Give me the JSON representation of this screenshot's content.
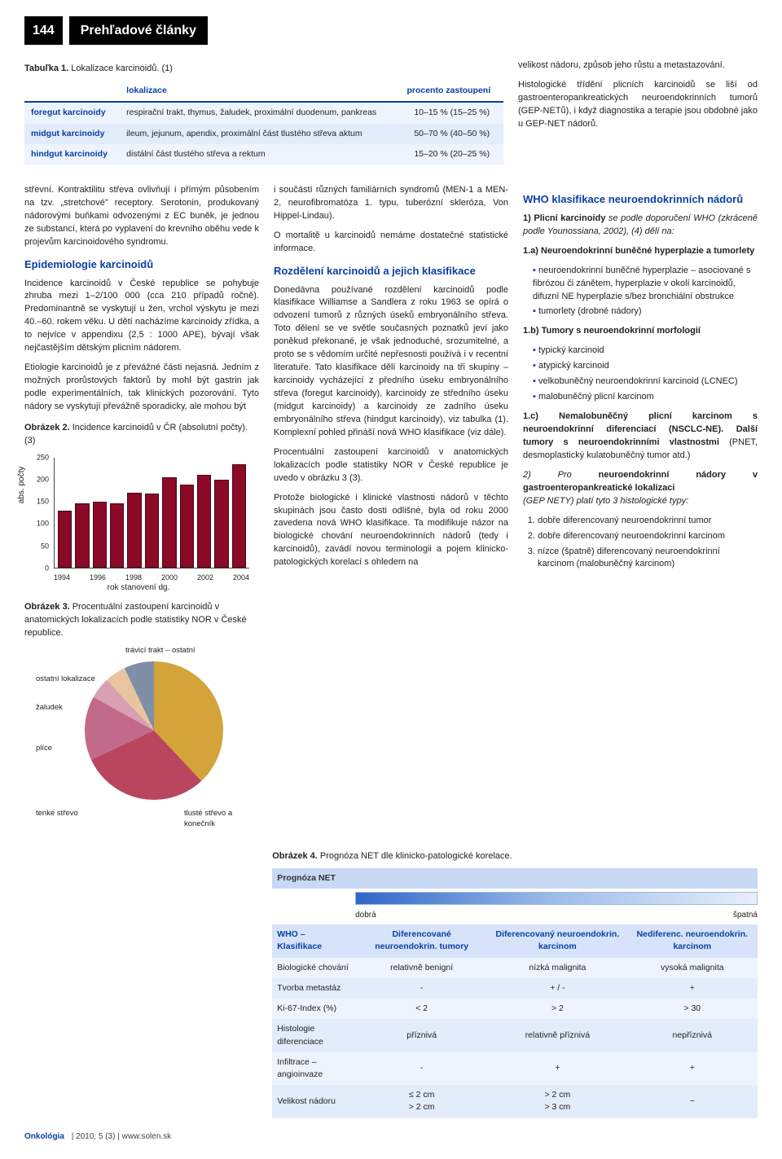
{
  "header": {
    "page_num": "144",
    "section": "Prehľadové články"
  },
  "table1": {
    "caption_bold": "Tabuľka 1.",
    "caption_rest": " Lokalizace karcinoidů. (1)",
    "cols": [
      "",
      "lokalizace",
      "procento zastoupení"
    ],
    "rows": [
      [
        "foregut karcinoidy",
        "respirační trakt, thymus, žaludek, proximální duodenum, pankreas",
        "10–15 % (15–25 %)"
      ],
      [
        "midgut karcinoidy",
        "ileum, jejunum, apendix, proximální část tlustého střeva aktum",
        "50–70 % (40–50 %)"
      ],
      [
        "hindgut karcinoidy",
        "distální část tlustého střeva a rektum",
        "15–20 % (20–25 %)"
      ]
    ]
  },
  "col1": {
    "p1": "střevní. Kontraktilitu střeva ovlivňují i přímým působením na tzv. „stretchové\" receptory. Serotonin, produkovaný nádorovými buňkami odvozenými z EC buněk, je jednou ze substancí, která po vyplavení do krevního oběhu vede k projevům karcinoidového syndromu.",
    "h_epi": "Epidemiologie karcinoidů",
    "p2": "Incidence karcinoidů v České republice se pohybuje zhruba mezi 1–2/100 000 (cca 210 případů ročně). Predominantně se vyskytují u žen, vrchol výskytu je mezi 40.–60. rokem věku. U dětí nacházíme karcinoidy zřídka, a to nejvíce v appendixu (2,5 : 1000 APE), bývají však nejčastějším dětským plicním nádorem.",
    "p3": "Etiologie karcinoidů je z převážné části nejasná. Jedním z možných prorůstových faktorů by mohl být gastrin jak podle experimentálních, tak klinických pozorování. Tyto nádory se vyskytují převážně sporadicky, ale mohou být",
    "fig2_cap_b": "Obrázek 2.",
    "fig2_cap_r": " Incidence karcinoidů v ČR (absolutní počty). (3)",
    "fig3_cap_b": "Obrázek 3.",
    "fig3_cap_r": " Procentuální zastoupení karcinoidů v anatomických lokalizacích podle statistiky NOR v České republice."
  },
  "barchart": {
    "type": "bar",
    "ylabel": "abs. počty",
    "xlabel": "rok stanovení dg.",
    "ylim": [
      0,
      250
    ],
    "ytick_step": 50,
    "yticks": [
      0,
      50,
      100,
      150,
      200,
      250
    ],
    "years": [
      "1994",
      "1995",
      "1996",
      "1997",
      "1998",
      "1999",
      "2000",
      "2001",
      "2002",
      "2003",
      "2004"
    ],
    "xticks_shown": [
      "1994",
      "",
      "1996",
      "",
      "1998",
      "",
      "2000",
      "",
      "2002",
      "",
      "2004"
    ],
    "values": [
      130,
      145,
      150,
      145,
      170,
      168,
      205,
      188,
      210,
      200,
      235
    ],
    "bar_color": "#8a0a28",
    "bar_border": "#4a0516",
    "grid_color": "#444444",
    "background_color": "#ffffff"
  },
  "pie": {
    "labels": [
      "tenké střevo",
      "tlusté střevo a konečník",
      "plíce",
      "žaludek",
      "ostatní lokalizace",
      "trávicí trakt – ostatní"
    ],
    "values": [
      38,
      30,
      15,
      5,
      5,
      7
    ],
    "colors": [
      "#d4a33a",
      "#b9455f",
      "#c26a8a",
      "#d99fb2",
      "#e8c5a0",
      "#7f8fa6"
    ]
  },
  "col2": {
    "p1": "i součástí různých familiárních syndromů (MEN-1 a MEN-2, neurofibromatóza 1. typu, tuberózní skleróza, Von Hippel-Lindau).",
    "p2": "O mortalitě u karcinoidů nemáme dostatečné statistické informace.",
    "h_rozd": "Rozdělení karcinoidů a jejich klasifikace",
    "p3": "Donedávna používané rozdělení karcinoidů podle klasifikace Williamse a Sandlera z roku 1963 se opírá o odvození tumorů z různých úseků embryonálního střeva. Toto dělení se ve světle současných poznatků jeví jako poněkud překonané, je však jednoduché, srozumitelné, a proto se s vědomím určité nepřesnosti používá i v recentní literatuře. Tato klasifikace dělí karcinoidy na tři skupiny – karcinoidy vycházející z předního úseku embryonálního střeva (foregut karcinoidy), karcinoidy ze středního úseku (midgut karcinoidy) a karcinoidy ze zadního úseku embryonálního střeva (hindgut karcinoidy), viz tabulka (1). Komplexní pohled přináší nová WHO klasifikace (viz dále).",
    "p4": "Procentuální zastoupení karcinoidů v anatomických lokalizacích podle statistiky NOR v České republice je uvedo v obrázku 3 (3).",
    "p5": "Protože biologické i klinické vlastnosti nádorů v těchto skupinách jsou často dosti odlišné, byla od roku 2000 zavedena nová WHO klasifikace. Ta modifikuje názor na biologické chování neuroendokrinních nádorů (tedy i karcinoidů), zavádí novou terminologii a pojem klinicko-patologických korelací s ohledem na"
  },
  "col3": {
    "p1": "velikost nádoru, způsob jeho růstu a metastazování.",
    "p2": "Histologické třídění plicních karcinoidů se liší od gastroenteropankreatických neuroendokrinních tumorů (GEP-NETů), i když diagnostika a terapie jsou obdobné jako u GEP-NET nádorů.",
    "h_who": "WHO klasifikace neuroendokrinních nádorů",
    "p3_b": "1) Plicní karcinoidy",
    "p3_r": " se podle doporučení WHO (zkráceně podle Younossiana, 2002), (4) dělí na:",
    "l1a": "1.a) Neuroendokrinní buněčné hyperplazie a tumorlety",
    "b1": "neuroendokrinní buněčné hyperplazie – asociované s fibrózou či zánětem, hyperplazie v okolí karcinoidů, difuzní NE hyperplazie s/bez bronchiální obstrukce",
    "b2": "tumorlety (drobné nádory)",
    "l1b": "1.b) Tumory s neuroendokrinní morfologií",
    "b3": "typický karcinoid",
    "b4": "atypický karcinoid",
    "b5": "velkobuněčný neuroendokrinní karcinoid (LCNEC)",
    "b6": "malobuněčný plicní karcinom",
    "l1c": "1.c) Nemalobuněčný plicní karcinom s neuroendokrinní diferenciací (NSCLC-NE). Další tumory s neuroendokrinními vlastnostmi",
    "l1c_r": " (PNET, desmoplastický kulatobuněčný tumor atd.)",
    "p4_i": "2) Pro",
    "p4_b": " neuroendokrinní nádory v gastroenteropankreatické lokalizaci",
    "p4_r": " (GEP NETY) platí tyto 3 histologické typy:",
    "o1": "dobře diferencovaný neuroendokrinní tumor",
    "o2": "dobře diferencovaný neuroendokrinní karcinom",
    "o3": "nízce (špatně) diferencovaný neuroendokrinní karcinom (malobuněčný karcinom)"
  },
  "fig4": {
    "cap_b": "Obrázek 4.",
    "cap_r": " Prognóza NET dle klinicko-patologické korelace.",
    "prog_title": "Prognóza NET",
    "prog_left": "dobrá",
    "prog_right": "špatná",
    "cols": [
      "WHO – Klasifikace",
      "Diferencované neuroendokrin. tumory",
      "Diferencovaný neuroendokrin. karcinom",
      "Nediferenc. neuroendokrin. karcinom"
    ],
    "rows": [
      [
        "Biologické chování",
        "relativně benigní",
        "nízká malignita",
        "vysoká malignita"
      ],
      [
        "Tvorba metastáz",
        "-",
        "+ / -",
        "+"
      ],
      [
        "Ki-67-Index (%)",
        "< 2",
        "> 2",
        "> 30"
      ],
      [
        "Histologie diferenciace",
        "příznivá",
        "relativně příznivá",
        "nepříznivá"
      ],
      [
        "Infiltrace – angioinvaze",
        "-",
        "+",
        "+"
      ],
      [
        "Velikost nádoru",
        "≤ 2 cm\n> 2 cm",
        "> 2 cm\n> 3 cm",
        "~"
      ]
    ]
  },
  "footer": {
    "journal": "Onkológia",
    "issue": "| 2010; 5 (3) |",
    "site": "www.solen.sk"
  }
}
